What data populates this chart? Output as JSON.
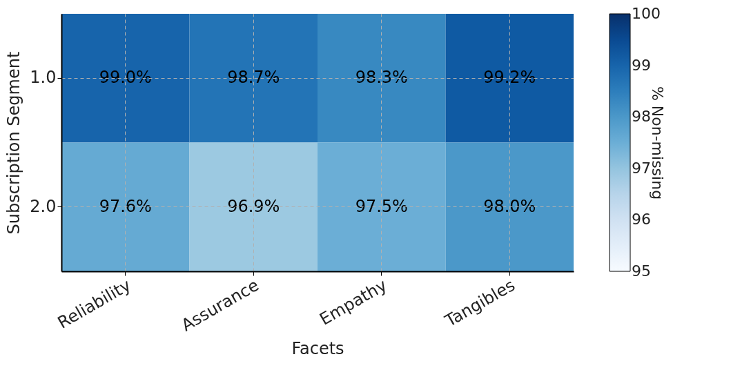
{
  "chart_data": {
    "type": "heatmap",
    "xlabel": "Facets",
    "ylabel": "Subscription Segment",
    "clabel": "% Non-missing",
    "categories": [
      "Reliability",
      "Assurance",
      "Empathy",
      "Tangibles"
    ],
    "y_categories": [
      "1.0",
      "2.0"
    ],
    "cells": [
      [
        99.0,
        98.7,
        98.3,
        99.2
      ],
      [
        97.6,
        96.9,
        97.5,
        98.0
      ]
    ],
    "cell_labels": [
      [
        "99.0%",
        "98.7%",
        "98.3%",
        "99.2%"
      ],
      [
        "97.6%",
        "96.9%",
        "97.5%",
        "98.0%"
      ]
    ],
    "clim": [
      95,
      100
    ],
    "cticks": [
      95,
      96,
      97,
      98,
      99,
      100
    ],
    "grid": true
  }
}
